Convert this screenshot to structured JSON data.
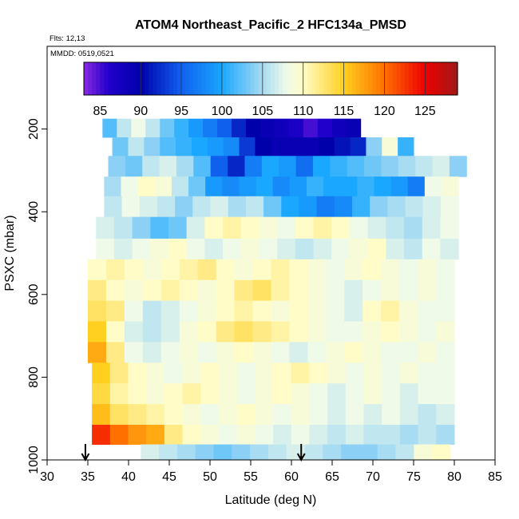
{
  "chart_data": {
    "type": "heatmap",
    "title": "ATOM4 Northeast_Pacific_2 HFC134a_PMSD",
    "flights_label": "Flts: 12,13",
    "date_label": "MMDD: 0519,0521",
    "xlabel": "Latitude (deg N)",
    "ylabel": "PSXC (mbar)",
    "xlim": [
      30,
      85
    ],
    "ylim": [
      1000,
      0
    ],
    "x_ticks": [
      "30",
      "35",
      "40",
      "45",
      "50",
      "55",
      "60",
      "65",
      "70",
      "75",
      "80",
      "85"
    ],
    "y_ticks": [
      "200",
      "400",
      "600",
      "800",
      "1000"
    ],
    "colorbar": {
      "range": [
        83,
        129
      ],
      "ticks": [
        "85",
        "90",
        "95",
        "100",
        "105",
        "110",
        "115",
        "120",
        "125"
      ],
      "stops": [
        {
          "v": 83,
          "c": "#8a2be2"
        },
        {
          "v": 86,
          "c": "#2200cc"
        },
        {
          "v": 90,
          "c": "#0000aa"
        },
        {
          "v": 95,
          "c": "#1060ee"
        },
        {
          "v": 100,
          "c": "#1aa7ff"
        },
        {
          "v": 105,
          "c": "#a8dcf2"
        },
        {
          "v": 108,
          "c": "#f0fae8"
        },
        {
          "v": 110,
          "c": "#fffcc8"
        },
        {
          "v": 115,
          "c": "#ffd020"
        },
        {
          "v": 120,
          "c": "#ff7000"
        },
        {
          "v": 125,
          "c": "#ee0000"
        },
        {
          "v": 129,
          "c": "#a01818"
        }
      ]
    },
    "arrows_latitude": [
      34.7,
      61.2
    ],
    "rows": [
      {
        "p": 200,
        "lat": [
          36.8,
          68.5
        ],
        "v": [
          102,
          106,
          108,
          106,
          103,
          101,
          99,
          97,
          95,
          92,
          90,
          89,
          88,
          87,
          85,
          86,
          88,
          89
        ]
      },
      {
        "p": 240,
        "lat": [
          38.0,
          75.0
        ],
        "v": [
          103,
          106,
          104,
          102,
          101,
          100,
          99,
          98,
          93,
          90,
          89,
          89,
          89,
          90,
          91,
          92,
          104,
          109,
          101
        ]
      },
      {
        "p": 290,
        "lat": [
          37.5,
          81.5
        ],
        "v": [
          104,
          103,
          106,
          107,
          105,
          102,
          95,
          92,
          97,
          100,
          99,
          96,
          100,
          101,
          102,
          103,
          104,
          105,
          106,
          107,
          104
        ]
      },
      {
        "p": 340,
        "lat": [
          37.0,
          80.5
        ],
        "v": [
          105,
          108,
          110,
          109,
          106,
          103,
          99,
          98,
          99,
          100,
          98,
          99,
          101,
          100,
          100,
          101,
          100,
          99,
          97,
          108,
          109
        ]
      },
      {
        "p": 385,
        "lat": [
          37.0,
          80.5
        ],
        "v": [
          106,
          108,
          107,
          106,
          104,
          106,
          107,
          105,
          106,
          103,
          100,
          99,
          97,
          98,
          101,
          104,
          105,
          106,
          107,
          108
        ]
      },
      {
        "p": 440,
        "lat": [
          36.0,
          80.5
        ],
        "v": [
          107,
          106,
          104,
          102,
          103,
          107,
          110,
          111,
          110,
          109,
          108,
          110,
          111,
          110,
          108,
          107,
          106,
          105,
          107,
          108
        ]
      },
      {
        "p": 490,
        "lat": [
          36.0,
          80.5
        ],
        "v": [
          108,
          107,
          108,
          109,
          110,
          108,
          107,
          108,
          109,
          108,
          107,
          106,
          107,
          108,
          109,
          110,
          107,
          106,
          108,
          107
        ]
      },
      {
        "p": 540,
        "lat": [
          35.0,
          80.0
        ],
        "v": [
          110,
          111,
          110,
          109,
          110,
          111,
          112,
          110,
          109,
          110,
          111,
          110,
          109,
          108,
          109,
          110,
          109,
          108,
          109,
          108
        ]
      },
      {
        "p": 590,
        "lat": [
          35.0,
          80.0
        ],
        "v": [
          112,
          110,
          109,
          110,
          111,
          110,
          109,
          110,
          112,
          113,
          111,
          110,
          109,
          108,
          107,
          108,
          109,
          108,
          109,
          108
        ]
      },
      {
        "p": 640,
        "lat": [
          35.0,
          80.0
        ],
        "v": [
          113,
          112,
          108,
          106,
          107,
          108,
          109,
          110,
          111,
          110,
          109,
          110,
          109,
          108,
          107,
          110,
          111,
          109,
          108,
          108
        ]
      },
      {
        "p": 690,
        "lat": [
          35.0,
          80.0
        ],
        "v": [
          115,
          110,
          107,
          106,
          107,
          109,
          110,
          112,
          113,
          112,
          111,
          110,
          109,
          108,
          108,
          109,
          110,
          109,
          108,
          109
        ]
      },
      {
        "p": 740,
        "lat": [
          35.0,
          80.0
        ],
        "v": [
          117,
          112,
          108,
          107,
          108,
          109,
          108,
          109,
          110,
          109,
          108,
          107,
          108,
          109,
          110,
          109,
          108,
          108,
          109,
          108
        ]
      },
      {
        "p": 790,
        "lat": [
          35.5,
          80.0
        ],
        "v": [
          115,
          112,
          110,
          109,
          108,
          109,
          110,
          109,
          108,
          109,
          110,
          111,
          110,
          109,
          108,
          109,
          108,
          109,
          108,
          108
        ]
      },
      {
        "p": 840,
        "lat": [
          35.5,
          80.0
        ],
        "v": [
          114,
          111,
          110,
          109,
          110,
          111,
          110,
          109,
          108,
          109,
          110,
          109,
          108,
          107,
          108,
          109,
          108,
          107,
          108,
          108
        ]
      },
      {
        "p": 890,
        "lat": [
          35.5,
          80.0
        ],
        "v": [
          116,
          113,
          112,
          111,
          110,
          109,
          108,
          109,
          110,
          109,
          108,
          109,
          108,
          107,
          108,
          107,
          108,
          107,
          106,
          107
        ]
      },
      {
        "p": 940,
        "lat": [
          35.5,
          80.0
        ],
        "v": [
          123,
          120,
          118,
          117,
          112,
          110,
          109,
          108,
          109,
          108,
          107,
          108,
          107,
          106,
          107,
          106,
          106,
          105,
          106,
          105
        ]
      },
      {
        "p": 985,
        "lat": [
          41.5,
          79.5
        ],
        "v": [
          107,
          106,
          105,
          104,
          103,
          104,
          105,
          106,
          107,
          106,
          105,
          104,
          104,
          105,
          106,
          109,
          110
        ]
      }
    ]
  }
}
